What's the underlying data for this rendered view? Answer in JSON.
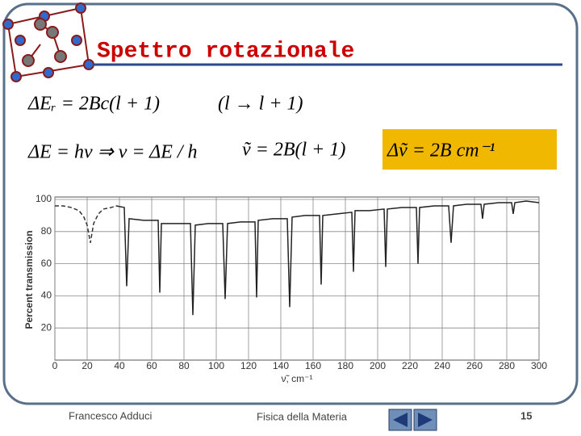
{
  "header": {
    "title": "Spettro rotazionale"
  },
  "formulas": [
    "ΔEᵣ = 2Bc(l + 1)",
    "(l → l + 1)",
    "ΔE = hν ⇒ ν = ΔE / h",
    "ṽ = 2B(l + 1)",
    "Δṽ = 2B  cm⁻¹"
  ],
  "chart_data": {
    "type": "line",
    "xlabel": "ν̃, cm⁻¹",
    "ylabel": "Percent transmission",
    "xlim": [
      0,
      300
    ],
    "ylim": [
      0,
      100
    ],
    "xticks": [
      0,
      20,
      40,
      60,
      80,
      100,
      120,
      140,
      160,
      180,
      200,
      220,
      240,
      260,
      280,
      300
    ],
    "yticks": [
      20,
      40,
      60,
      80,
      100
    ],
    "grid": true,
    "series": [
      {
        "color": "#333333",
        "style": "dashed",
        "x": [
          0,
          5,
          10,
          15,
          18,
          20,
          22,
          24,
          27,
          30,
          35,
          38
        ],
        "values": [
          96,
          96,
          95,
          93,
          89,
          84,
          73,
          85,
          91,
          94,
          95,
          96
        ]
      },
      {
        "color": "#222222",
        "style": "solid",
        "x": [
          38,
          43,
          44.5,
          46,
          55,
          64,
          65,
          66,
          75,
          84,
          85.5,
          87,
          95,
          104,
          105.5,
          107,
          115,
          124,
          125,
          126,
          135,
          144,
          145.5,
          147,
          155,
          164,
          165,
          166,
          175,
          184,
          185,
          186,
          195,
          204,
          205,
          206,
          215,
          224,
          225,
          226,
          235,
          244,
          245.5,
          247,
          255,
          264,
          265,
          266,
          275,
          283,
          284,
          285,
          292,
          300
        ],
        "values": [
          96,
          95,
          46,
          88,
          87,
          87,
          42,
          85,
          85,
          85,
          28,
          84,
          85,
          85,
          38,
          85,
          86,
          86,
          39,
          87,
          88,
          88,
          33,
          89,
          90,
          90,
          47,
          90,
          91,
          92,
          55,
          93,
          93,
          94,
          58,
          94,
          95,
          95,
          60,
          95,
          96,
          96,
          73,
          96,
          97,
          97,
          88,
          97,
          98,
          98,
          91,
          98,
          99,
          98
        ]
      }
    ]
  },
  "footer": {
    "author": "Francesco Adduci",
    "course": "Fisica della Materia",
    "page": "15"
  }
}
